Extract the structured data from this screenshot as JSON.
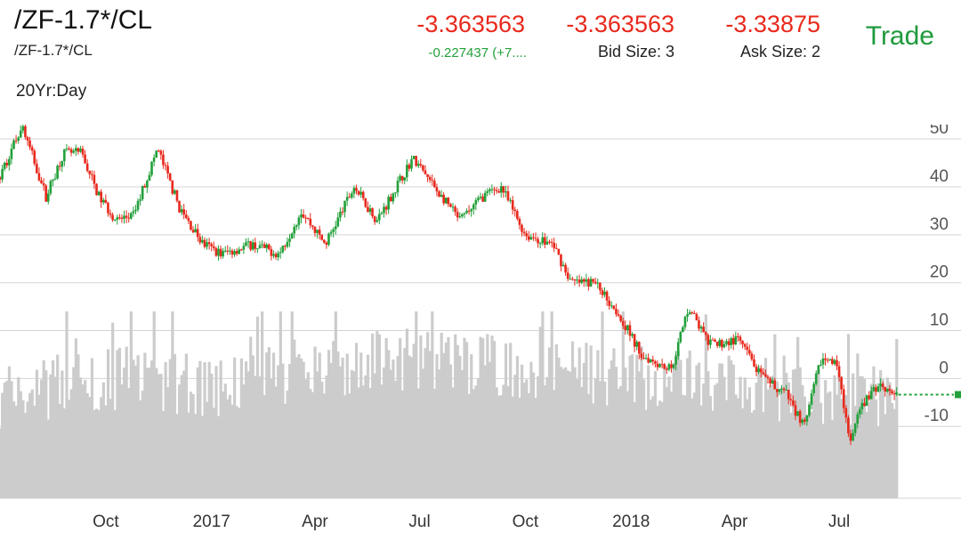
{
  "header": {
    "symbol": "/ZF-1.7*/CL",
    "subsymbol": "/ZF-1.7*/CL",
    "range_label": "20Yr:Day",
    "last": "-3.363563",
    "change": "-0.227437 (+7....",
    "bid": "-3.363563",
    "bid_size": "Bid Size: 3",
    "ask": "-3.33875",
    "ask_size": "Ask Size: 2",
    "trade_label": "Trade"
  },
  "colors": {
    "up": "#22a03a",
    "down": "#e8291c",
    "volume": "#cccccc",
    "grid": "#d4d4d4",
    "last_line": "#22a03a"
  },
  "chart_data": {
    "type": "candlestick",
    "title": "",
    "xlabel": "",
    "ylabel": "",
    "x_ticks": [
      "Oct",
      "2017",
      "Apr",
      "Jul",
      "Oct",
      "2018",
      "Apr",
      "Jul"
    ],
    "x_tick_dates": [
      "2016-10-01",
      "2017-01-01",
      "2017-04-01",
      "2017-07-01",
      "2017-10-01",
      "2018-01-01",
      "2018-04-01",
      "2018-07-01"
    ],
    "x_range": [
      "2016-07-01",
      "2018-10-15"
    ],
    "y_ticks": [
      "50",
      "40",
      "30",
      "20",
      "10",
      "0",
      "-10"
    ],
    "y_tick_values": [
      50,
      40,
      30,
      20,
      10,
      0,
      -10
    ],
    "ylim": [
      -25,
      53
    ],
    "grid": true,
    "last_value": -3.36,
    "price_path": [
      {
        "date": "2016-07-01",
        "value": 42
      },
      {
        "date": "2016-07-20",
        "value": 53
      },
      {
        "date": "2016-08-10",
        "value": 38
      },
      {
        "date": "2016-08-25",
        "value": 47
      },
      {
        "date": "2016-09-10",
        "value": 47
      },
      {
        "date": "2016-09-25",
        "value": 38
      },
      {
        "date": "2016-10-10",
        "value": 33
      },
      {
        "date": "2016-10-25",
        "value": 34
      },
      {
        "date": "2016-11-15",
        "value": 48
      },
      {
        "date": "2016-12-05",
        "value": 35
      },
      {
        "date": "2016-12-25",
        "value": 28
      },
      {
        "date": "2017-01-10",
        "value": 26
      },
      {
        "date": "2017-02-05",
        "value": 28
      },
      {
        "date": "2017-03-01",
        "value": 26
      },
      {
        "date": "2017-03-20",
        "value": 35
      },
      {
        "date": "2017-04-10",
        "value": 28
      },
      {
        "date": "2017-05-05",
        "value": 40
      },
      {
        "date": "2017-05-25",
        "value": 33
      },
      {
        "date": "2017-06-25",
        "value": 46
      },
      {
        "date": "2017-07-20",
        "value": 38
      },
      {
        "date": "2017-08-05",
        "value": 33
      },
      {
        "date": "2017-08-25",
        "value": 38
      },
      {
        "date": "2017-09-10",
        "value": 40
      },
      {
        "date": "2017-10-01",
        "value": 30
      },
      {
        "date": "2017-10-25",
        "value": 28
      },
      {
        "date": "2017-11-10",
        "value": 20
      },
      {
        "date": "2017-12-01",
        "value": 20
      },
      {
        "date": "2017-12-20",
        "value": 14
      },
      {
        "date": "2018-01-10",
        "value": 5
      },
      {
        "date": "2018-02-05",
        "value": 2
      },
      {
        "date": "2018-02-20",
        "value": 15
      },
      {
        "date": "2018-03-10",
        "value": 7
      },
      {
        "date": "2018-04-05",
        "value": 8
      },
      {
        "date": "2018-04-25",
        "value": 0
      },
      {
        "date": "2018-05-15",
        "value": -3
      },
      {
        "date": "2018-06-01",
        "value": -10
      },
      {
        "date": "2018-06-15",
        "value": 4
      },
      {
        "date": "2018-06-30",
        "value": 3
      },
      {
        "date": "2018-07-10",
        "value": -14
      },
      {
        "date": "2018-07-20",
        "value": -6
      },
      {
        "date": "2018-08-05",
        "value": -1
      },
      {
        "date": "2018-08-20",
        "value": -3.36
      }
    ],
    "volume_profile": [
      {
        "date": "2016-07-01",
        "value": 0.55
      },
      {
        "date": "2016-10-01",
        "value": 0.65
      },
      {
        "date": "2017-01-01",
        "value": 0.6
      },
      {
        "date": "2017-04-01",
        "value": 0.7
      },
      {
        "date": "2017-07-01",
        "value": 0.75
      },
      {
        "date": "2017-10-01",
        "value": 0.7
      },
      {
        "date": "2018-01-01",
        "value": 0.65
      },
      {
        "date": "2018-04-01",
        "value": 0.6
      },
      {
        "date": "2018-08-20",
        "value": 0.55
      }
    ]
  }
}
